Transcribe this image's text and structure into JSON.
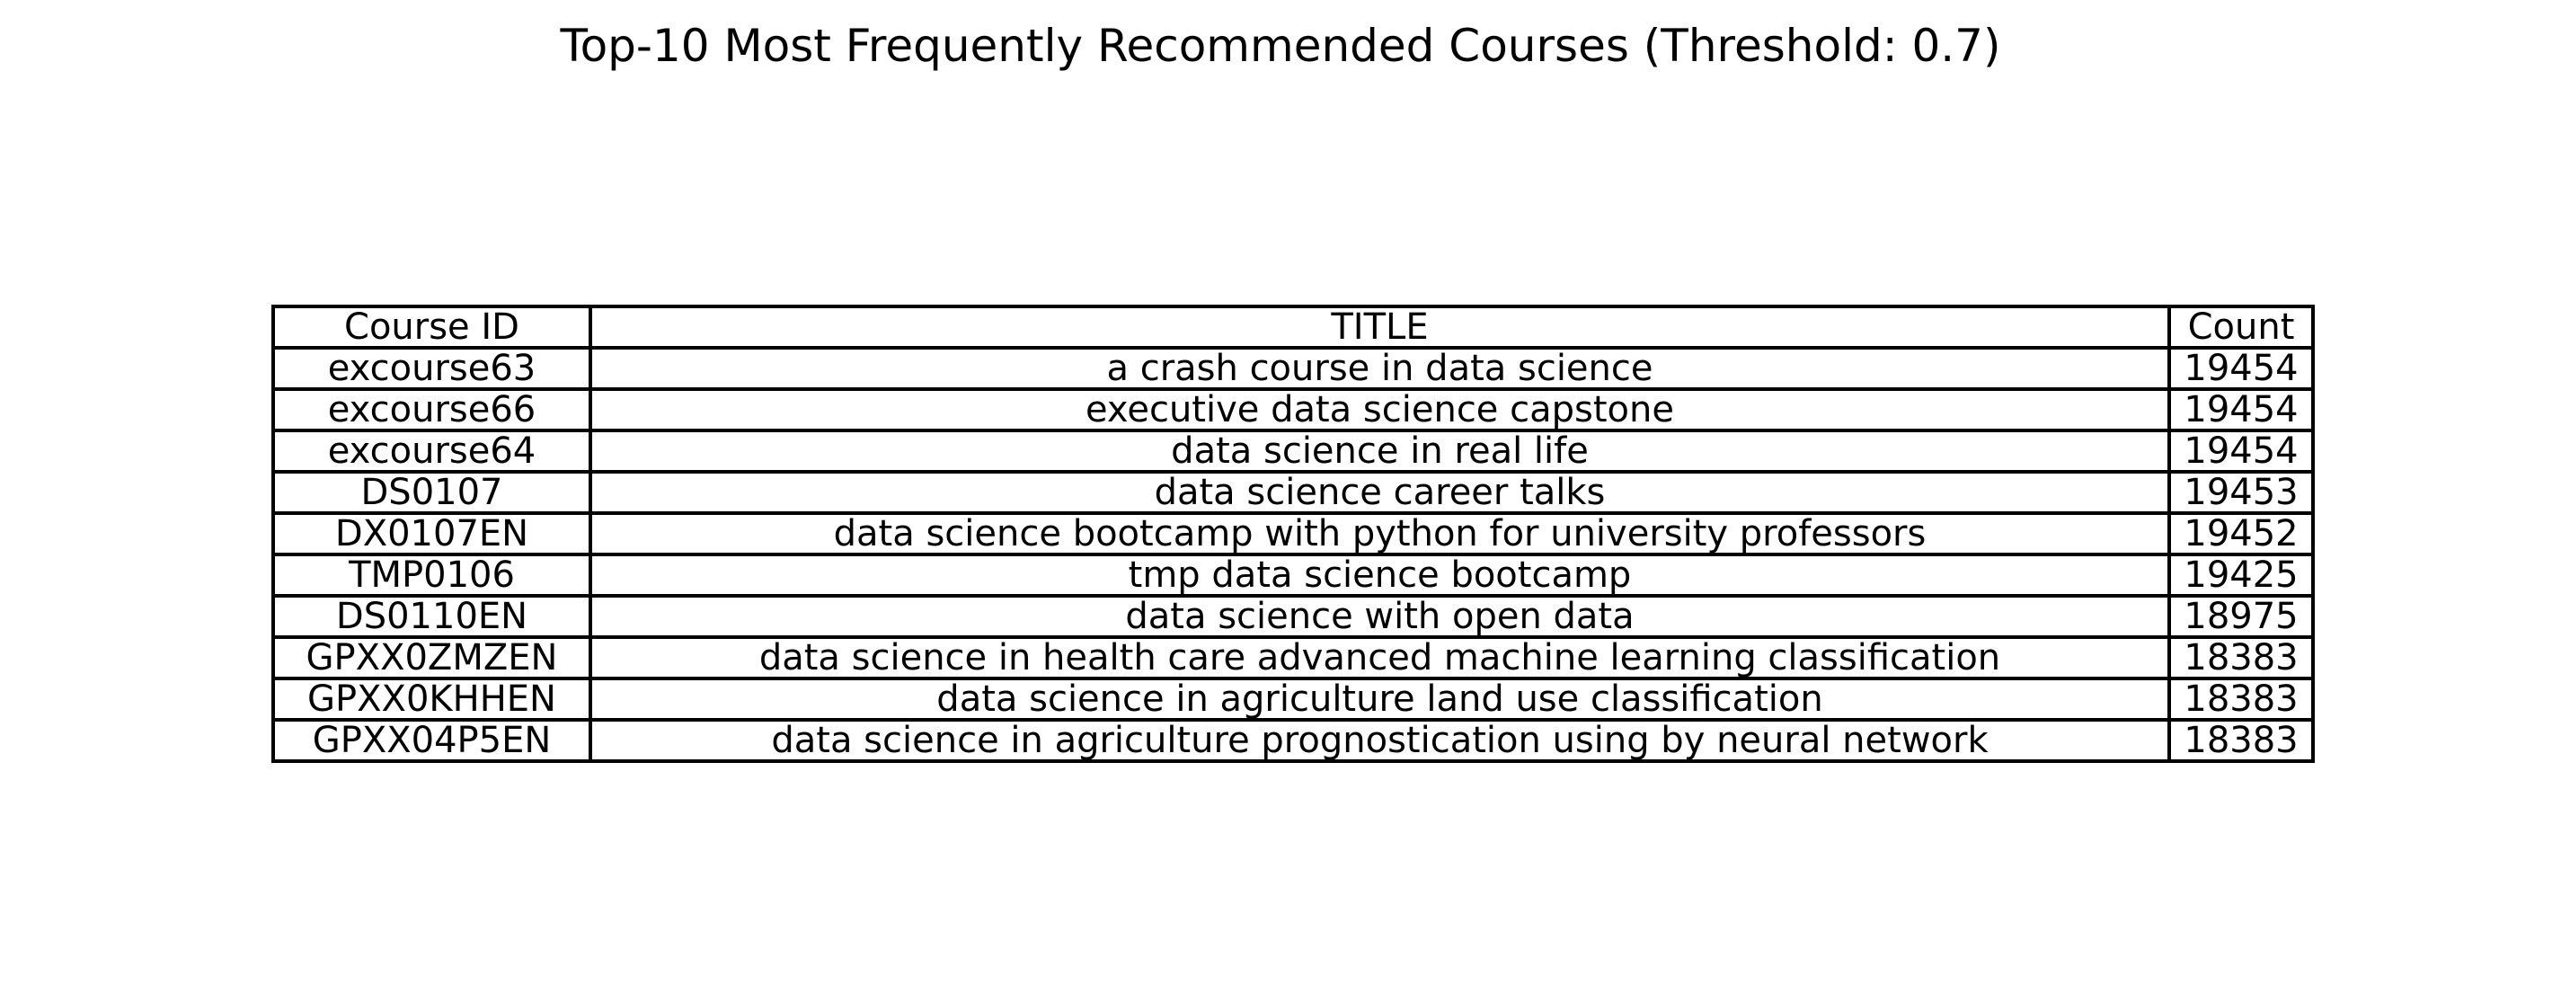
{
  "chart_data": {
    "type": "table",
    "title": "Top-10 Most Frequently Recommended Courses (Threshold: 0.7)",
    "columns": [
      "Course ID",
      "TITLE",
      "Count"
    ],
    "rows": [
      [
        "excourse63",
        "a crash course in data science",
        19454
      ],
      [
        "excourse66",
        "executive data science capstone",
        19454
      ],
      [
        "excourse64",
        "data science in real life",
        19454
      ],
      [
        "DS0107",
        "data science career talks",
        19453
      ],
      [
        "DX0107EN",
        "data science bootcamp with python for university professors",
        19452
      ],
      [
        "TMP0106",
        "tmp data science bootcamp",
        19425
      ],
      [
        "DS0110EN",
        "data science with open data",
        18975
      ],
      [
        "GPXX0ZMZEN",
        "data science in health care  advanced machine learning classification",
        18383
      ],
      [
        "GPXX0KHHEN",
        "data science in agriculture  land use classification",
        18383
      ],
      [
        "GPXX04P5EN",
        "data science in agriculture  prognostication using by neural network",
        18383
      ]
    ]
  }
}
